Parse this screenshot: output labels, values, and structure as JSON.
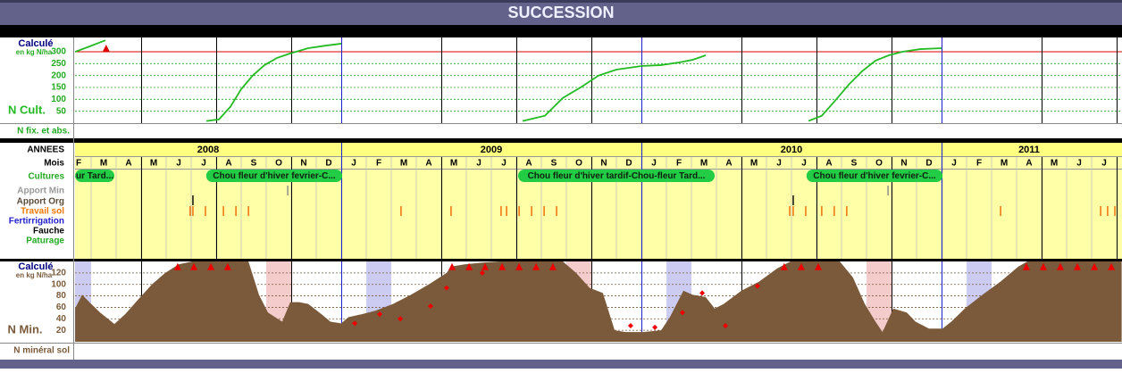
{
  "title": "SUCCESSION",
  "xlim": [
    1.36,
    43.2
  ],
  "n_cult": {
    "type": "line",
    "unit_title": "Calculé",
    "unit": "en kg N/ha",
    "label": "N Cult.",
    "ylim": [
      0,
      360
    ],
    "yticks": [
      50,
      100,
      150,
      200,
      250,
      300
    ],
    "threshold": 300,
    "threshold_color": "#dd0000",
    "color": "#22bb22",
    "x": [
      1.36,
      1.93,
      2.57,
      null,
      6.61,
      7.11,
      7.57,
      8,
      8.46,
      8.93,
      9.43,
      9.96,
      10.68,
      11.39,
      12,
      null,
      19.25,
      20.14,
      20.86,
      21.57,
      22.29,
      23,
      24,
      24.79,
      25.5,
      26.04,
      26.57,
      null,
      30.68,
      31.21,
      31.75,
      32.29,
      32.82,
      33.36,
      33.89,
      34.43,
      35.14,
      36
    ],
    "values": [
      300,
      322,
      348,
      null,
      9,
      16,
      69,
      143,
      200,
      244,
      274,
      293,
      315,
      326,
      334,
      null,
      9,
      31,
      106,
      150,
      200,
      225,
      240,
      244,
      255,
      266,
      285,
      null,
      9,
      31,
      95,
      162,
      218,
      263,
      285,
      300,
      311,
      315
    ],
    "markers": {
      "color": "#dd0000",
      "x": [
        2.6
      ],
      "values": [
        315
      ]
    }
  },
  "n_fix_label": "N fix. et abs.",
  "timeline": {
    "rows": [
      "ANNEES",
      "Mois",
      "Cultures",
      "Apport Min",
      "Apport Org",
      "Travail sol",
      "Fertirrigation",
      "Fauche",
      "Paturage"
    ],
    "years": [
      {
        "label": "2008",
        "months": [
          "F",
          "M",
          "A",
          "M",
          "J",
          "J",
          "A",
          "S",
          "O",
          "N",
          "D"
        ]
      },
      {
        "label": "2009",
        "months": [
          "J",
          "F",
          "M",
          "A",
          "M",
          "J",
          "J",
          "A",
          "S",
          "O",
          "N",
          "D"
        ]
      },
      {
        "label": "2010",
        "months": [
          "J",
          "F",
          "M",
          "A",
          "M",
          "J",
          "J",
          "A",
          "S",
          "O",
          "N",
          "D"
        ]
      },
      {
        "label": "2011",
        "months": [
          "J",
          "F",
          "M",
          "A",
          "M",
          "J",
          "J"
        ]
      }
    ],
    "crops": [
      {
        "label": "ur Tard...",
        "start": 1.36,
        "end": 2.93
      },
      {
        "label": "Chou fleur d'hiver fevrier-C...",
        "start": 6.6,
        "end": 12.04
      },
      {
        "label": "Chou fleur d'hiver tardif-Chou-fleur Tard...",
        "start": 19.07,
        "end": 26.93
      },
      {
        "label": "Chou fleur d'hiver fevrier-C...",
        "start": 30.6,
        "end": 36.04
      }
    ],
    "crop_color": "#22cc44",
    "apport_min": [
      9.86,
      33.86
    ],
    "apport_org": [
      6.07,
      30.07
    ],
    "travail_sol": [
      5.96,
      6.07,
      6.57,
      7.29,
      7.79,
      8.29,
      14.39,
      16.39,
      18.39,
      18.61,
      19.11,
      19.61,
      20.11,
      20.61,
      29.93,
      30.07,
      30.57,
      31.21,
      31.71,
      32.21,
      38.36,
      42.36,
      42.64,
      42.93
    ]
  },
  "n_min": {
    "type": "area",
    "unit_title": "Calculé",
    "unit": "en kg N/ha",
    "label": "N Min.",
    "ylim": [
      0,
      140
    ],
    "yticks": [
      20,
      40,
      60,
      80,
      100,
      120
    ],
    "color": "#7a5a3a",
    "x": [
      1.36,
      1.64,
      1.93,
      2.36,
      2.93,
      3.36,
      3.89,
      4.43,
      4.96,
      5.5,
      6.04,
      6.57,
      7.11,
      7.64,
      8.29,
      8.71,
      9.07,
      9.64,
      9.96,
      10.32,
      10.68,
      11.21,
      11.57,
      12,
      12.29,
      12.82,
      13.36,
      14.07,
      14.79,
      15.5,
      16.21,
      16.39,
      16.93,
      17.64,
      18.36,
      19.79,
      20.86,
      21.39,
      21.93,
      22.46,
      22.93,
      23.36,
      24.07,
      24.79,
      25.14,
      25.68,
      26.04,
      26.57,
      26.93,
      27.29,
      28,
      28.71,
      29.43,
      29.96,
      31.21,
      31.93,
      32.46,
      32.93,
      33.36,
      33.64,
      34.07,
      34.61,
      34.96,
      35.5,
      36.04,
      36.39,
      36.93,
      37.64,
      38.36,
      39.07,
      39.43,
      43.2
    ],
    "values": [
      58,
      82,
      69,
      51,
      31,
      48,
      74,
      100,
      120,
      135,
      140,
      140,
      140,
      140,
      140,
      82,
      51,
      35,
      69,
      69,
      66,
      48,
      35,
      32,
      43,
      48,
      54,
      66,
      82,
      100,
      120,
      131,
      135,
      138,
      140,
      140,
      140,
      120,
      94,
      85,
      20,
      17,
      17,
      20,
      43,
      89,
      82,
      78,
      58,
      66,
      89,
      105,
      128,
      140,
      140,
      140,
      112,
      66,
      35,
      17,
      58,
      51,
      35,
      23,
      23,
      35,
      58,
      82,
      105,
      131,
      140,
      140
    ],
    "bands": [
      {
        "start": 1,
        "end": 2,
        "color": "#ccccf2"
      },
      {
        "start": 13,
        "end": 14,
        "color": "#ccccf2"
      },
      {
        "start": 25,
        "end": 26,
        "color": "#ccccf2"
      },
      {
        "start": 37,
        "end": 38,
        "color": "#ccccf2"
      },
      {
        "start": 9,
        "end": 10,
        "color": "#f5cccc"
      },
      {
        "start": 21,
        "end": 22,
        "color": "#f5cccc"
      },
      {
        "start": 33,
        "end": 34,
        "color": "#f5cccc"
      }
    ],
    "triggers": {
      "color": "#ee0000",
      "x": [
        5.46,
        6.11,
        6.79,
        7.46,
        16.43,
        17.11,
        17.75,
        18.43,
        19.11,
        19.79,
        20.46,
        29.71,
        30.39,
        31.07,
        39.39,
        40.07,
        40.75,
        41.43,
        42.11,
        42.79
      ],
      "values": [
        131,
        131,
        131,
        131,
        131,
        131,
        131,
        131,
        131,
        131,
        131,
        131,
        131,
        131,
        131,
        131,
        131,
        131,
        131,
        131
      ]
    },
    "measures": {
      "color": "#ee0000",
      "x": [
        12.54,
        13.54,
        14.36,
        15.57,
        16.21,
        17.64,
        23.57,
        24.54,
        25.64,
        26.43,
        27.36,
        28.64
      ],
      "values": [
        32,
        48,
        40,
        62,
        94,
        120,
        28,
        25,
        51,
        85,
        28,
        97
      ]
    }
  },
  "n_mineral_label": "N minéral sol"
}
